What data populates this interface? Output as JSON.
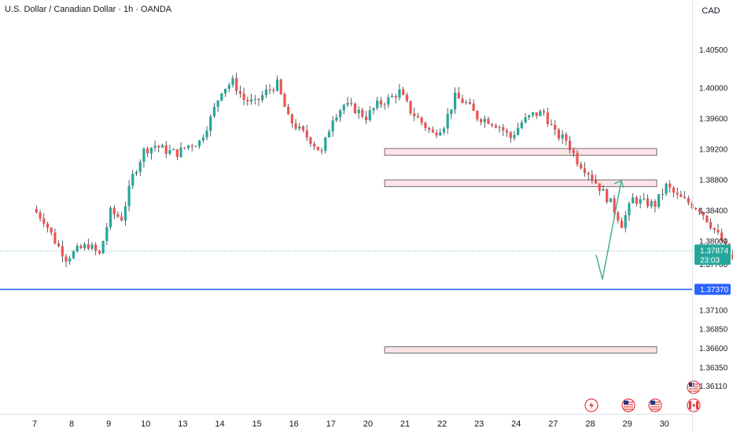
{
  "title": "U.S. Dollar / Canadian Dollar · 1h · OANDA",
  "currency": "CAD",
  "colors": {
    "up": "#26a69a",
    "down": "#ef5350",
    "wick": "#131722",
    "support_line": "#2962ff",
    "zone_fill": "#fce4e6",
    "zone_stroke": "#131722",
    "arrow": "#4caf8f",
    "current_line": "#26a69a",
    "current_label": "#26a69a",
    "support_label": "#2962ff"
  },
  "chart_data": {
    "type": "candlestick",
    "y_ticks": [
      "1.40500",
      "1.40000",
      "1.39600",
      "1.39200",
      "1.38800",
      "1.38400",
      "1.38000",
      "1.37700",
      "1.37100",
      "1.36850",
      "1.36600",
      "1.36350",
      "1.36110"
    ],
    "x_ticks": [
      "7",
      "8",
      "9",
      "10",
      "13",
      "14",
      "15",
      "16",
      "17",
      "20",
      "21",
      "22",
      "23",
      "24",
      "27",
      "28",
      "29",
      "30"
    ],
    "price_path": [
      [
        7.0,
        1.3842
      ],
      [
        7.3,
        1.3828
      ],
      [
        7.6,
        1.38
      ],
      [
        7.9,
        1.3778
      ],
      [
        8.2,
        1.3788
      ],
      [
        8.5,
        1.3795
      ],
      [
        8.8,
        1.3782
      ],
      [
        9.1,
        1.3838
      ],
      [
        9.4,
        1.383
      ],
      [
        9.7,
        1.3885
      ],
      [
        10.0,
        1.3918
      ],
      [
        10.3,
        1.3925
      ],
      [
        10.6,
        1.3918
      ],
      [
        10.9,
        1.3915
      ],
      [
        11.2,
        1.3925
      ],
      [
        11.5,
        1.393
      ],
      [
        11.8,
        1.396
      ],
      [
        12.1,
        1.3998
      ],
      [
        12.4,
        1.4008
      ],
      [
        12.7,
        1.3985
      ],
      [
        13.0,
        1.398
      ],
      [
        13.3,
        1.3995
      ],
      [
        13.6,
        1.4005
      ],
      [
        13.9,
        1.396
      ],
      [
        14.2,
        1.3945
      ],
      [
        14.5,
        1.3932
      ],
      [
        14.8,
        1.3915
      ],
      [
        15.1,
        1.3962
      ],
      [
        15.4,
        1.3978
      ],
      [
        15.7,
        1.3972
      ],
      [
        16.0,
        1.3962
      ],
      [
        16.3,
        1.3978
      ],
      [
        16.6,
        1.3985
      ],
      [
        16.9,
        1.3995
      ],
      [
        17.2,
        1.397
      ],
      [
        17.5,
        1.3955
      ],
      [
        17.8,
        1.394
      ],
      [
        18.1,
        1.3952
      ],
      [
        18.4,
        1.3988
      ],
      [
        18.7,
        1.398
      ],
      [
        19.0,
        1.3962
      ],
      [
        19.3,
        1.3958
      ],
      [
        19.6,
        1.395
      ],
      [
        19.9,
        1.3935
      ],
      [
        20.2,
        1.3955
      ],
      [
        20.5,
        1.3965
      ],
      [
        20.8,
        1.3968
      ],
      [
        21.1,
        1.394
      ],
      [
        21.4,
        1.3932
      ],
      [
        21.7,
        1.3905
      ],
      [
        22.0,
        1.389
      ],
      [
        22.3,
        1.387
      ],
      [
        22.6,
        1.385
      ],
      [
        22.9,
        1.3822
      ],
      [
        23.2,
        1.3855
      ],
      [
        23.5,
        1.385
      ],
      [
        23.8,
        1.3848
      ],
      [
        24.1,
        1.3872
      ],
      [
        24.4,
        1.3858
      ],
      [
        24.7,
        1.385
      ],
      [
        25.0,
        1.3842
      ],
      [
        25.3,
        1.3822
      ],
      [
        25.6,
        1.38
      ],
      [
        25.9,
        1.3775
      ],
      [
        26.2,
        1.3728
      ],
      [
        26.5,
        1.372
      ],
      [
        26.8,
        1.369
      ],
      [
        27.1,
        1.37
      ],
      [
        27.4,
        1.3715
      ],
      [
        27.7,
        1.3735
      ],
      [
        28.0,
        1.3738
      ],
      [
        28.3,
        1.374
      ],
      [
        28.6,
        1.3742
      ],
      [
        28.9,
        1.3752
      ],
      [
        29.2,
        1.3768
      ],
      [
        29.5,
        1.3778
      ],
      [
        29.8,
        1.3787
      ]
    ],
    "zones": [
      {
        "from": 1.3921,
        "to": 1.3912
      },
      {
        "from": 1.388,
        "to": 1.3871
      },
      {
        "from": 1.3662,
        "to": 1.3654
      }
    ],
    "support_level": "1.37370",
    "current_price": "1.37874",
    "countdown": "23:03",
    "projection": [
      [
        1.3782,
        1.375
      ],
      [
        1.375,
        1.3879
      ]
    ]
  },
  "event_icons": [
    "flash-icon",
    "us-flag-icon",
    "us-flag-icon",
    "us-flag-icon",
    "canada-flag-icon"
  ]
}
